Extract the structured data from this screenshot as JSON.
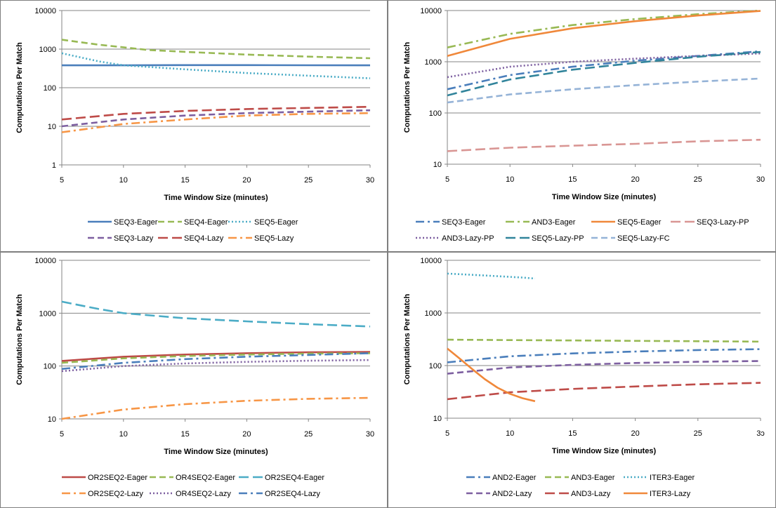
{
  "chart_data": [
    {
      "type": "line",
      "xlabel": "Time Window Size (minutes)",
      "ylabel": "Computations Per Match",
      "yscale": "log",
      "xlim": [
        5,
        30
      ],
      "ylim": [
        1,
        10000
      ],
      "xticks": [
        "5",
        "10",
        "15",
        "20",
        "25",
        "30"
      ],
      "yticks": [
        "1",
        "10",
        "100",
        "1000",
        "10000"
      ],
      "legend_rows": 2,
      "series": [
        {
          "name": "SEQ3-Eager",
          "color": "#4a7ebb",
          "dash": "solid",
          "x": [
            5,
            10,
            15,
            20,
            25,
            30
          ],
          "values": [
            380,
            380,
            385,
            385,
            382,
            380
          ]
        },
        {
          "name": "SEQ4-Eager",
          "color": "#98b954",
          "dash": "dash",
          "x": [
            5,
            8,
            12,
            15,
            20,
            25,
            30
          ],
          "values": [
            1750,
            1300,
            950,
            850,
            720,
            640,
            580
          ]
        },
        {
          "name": "SEQ5-Eager",
          "color": "#4bacc6",
          "dash": "dot",
          "x": [
            5,
            8,
            10,
            15,
            20,
            25,
            30
          ],
          "values": [
            780,
            480,
            380,
            300,
            240,
            205,
            175
          ]
        },
        {
          "name": "SEQ3-Lazy",
          "color": "#7d5fa0",
          "dash": "dash",
          "x": [
            5,
            10,
            15,
            20,
            25,
            30
          ],
          "values": [
            10,
            15,
            19,
            22,
            24,
            26
          ]
        },
        {
          "name": "SEQ4-Lazy",
          "color": "#be4b48",
          "dash": "longdash",
          "x": [
            5,
            10,
            15,
            20,
            25,
            30
          ],
          "values": [
            15,
            21,
            25,
            28,
            30,
            32
          ]
        },
        {
          "name": "SEQ5-Lazy",
          "color": "#f79646",
          "dash": "dashdot",
          "x": [
            5,
            10,
            15,
            20,
            25,
            30
          ],
          "values": [
            7,
            11.5,
            15,
            19,
            21,
            22
          ]
        }
      ]
    },
    {
      "type": "line",
      "xlabel": "Time Window Size (minutes)",
      "ylabel": "Computations Per Match",
      "yscale": "log",
      "xlim": [
        5,
        30
      ],
      "ylim": [
        10,
        10000
      ],
      "xticks": [
        "5",
        "10",
        "15",
        "20",
        "25",
        "30"
      ],
      "yticks": [
        "10",
        "100",
        "1000",
        "10000"
      ],
      "legend_rows": 2,
      "series": [
        {
          "name": "SEQ3-Eager",
          "color": "#4a7ebb",
          "dash": "dashdot",
          "x": [
            5,
            10,
            15,
            20,
            25,
            30
          ],
          "values": [
            290,
            550,
            800,
            1050,
            1300,
            1600
          ]
        },
        {
          "name": "AND3-Eager",
          "color": "#98b954",
          "dash": "dashdot",
          "x": [
            5,
            10,
            15,
            20,
            25,
            30
          ],
          "values": [
            1900,
            3500,
            5200,
            6800,
            8500,
            10000
          ]
        },
        {
          "name": "SEQ5-Eager",
          "color": "#f0883a",
          "dash": "solid",
          "x": [
            5,
            10,
            15,
            20,
            25,
            30
          ],
          "values": [
            1300,
            2800,
            4500,
            6200,
            8000,
            9800
          ]
        },
        {
          "name": "SEQ3-Lazy-PP",
          "color": "#d99694",
          "dash": "longdash",
          "x": [
            5,
            10,
            15,
            20,
            25,
            30
          ],
          "values": [
            18,
            21,
            23,
            25,
            28,
            30
          ]
        },
        {
          "name": "AND3-Lazy-PP",
          "color": "#7d5fa0",
          "dash": "dot",
          "x": [
            5,
            10,
            15,
            20,
            25,
            30
          ],
          "values": [
            500,
            800,
            1000,
            1150,
            1300,
            1450
          ]
        },
        {
          "name": "SEQ5-Lazy-PP",
          "color": "#31849b",
          "dash": "longdash",
          "x": [
            5,
            10,
            15,
            20,
            25,
            30
          ],
          "values": [
            220,
            450,
            700,
            950,
            1250,
            1550
          ]
        },
        {
          "name": "SEQ5-Lazy-FC",
          "color": "#95b3d7",
          "dash": "dash",
          "x": [
            5,
            10,
            15,
            20,
            25,
            30
          ],
          "values": [
            160,
            230,
            290,
            350,
            410,
            470
          ]
        }
      ]
    },
    {
      "type": "line",
      "xlabel": "Time Window Size (minutes)",
      "ylabel": "Computations Per Match",
      "yscale": "log",
      "xlim": [
        5,
        30
      ],
      "ylim": [
        10,
        10000
      ],
      "xticks": [
        "5",
        "10",
        "15",
        "20",
        "25",
        "30"
      ],
      "yticks": [
        "10",
        "100",
        "1000",
        "10000"
      ],
      "legend_rows": 2,
      "series": [
        {
          "name": "OR2SEQ2-Eager",
          "color": "#be4b48",
          "dash": "solid",
          "x": [
            5,
            10,
            15,
            20,
            25,
            30
          ],
          "values": [
            125,
            150,
            165,
            175,
            182,
            185
          ]
        },
        {
          "name": "OR4SEQ2-Eager",
          "color": "#98b954",
          "dash": "dash",
          "x": [
            5,
            10,
            15,
            20,
            25,
            30
          ],
          "values": [
            115,
            140,
            155,
            165,
            172,
            175
          ]
        },
        {
          "name": "OR2SEQ4-Eager",
          "color": "#4bacc6",
          "dash": "longdash",
          "x": [
            5,
            8,
            10,
            15,
            20,
            25,
            30
          ],
          "values": [
            1650,
            1200,
            1000,
            800,
            700,
            620,
            560
          ]
        },
        {
          "name": "OR2SEQ2-Lazy",
          "color": "#f79646",
          "dash": "dashdot",
          "x": [
            5,
            10,
            15,
            20,
            25,
            30
          ],
          "values": [
            10,
            15,
            19,
            22,
            24,
            25
          ]
        },
        {
          "name": "OR4SEQ2-Lazy",
          "color": "#7d5fa0",
          "dash": "dot",
          "x": [
            5,
            10,
            15,
            20,
            25,
            30
          ],
          "values": [
            80,
            100,
            112,
            120,
            126,
            130
          ]
        },
        {
          "name": "OR2SEQ4-Lazy",
          "color": "#4a7ebb",
          "dash": "dashdot",
          "x": [
            5,
            10,
            15,
            20,
            25,
            30
          ],
          "values": [
            88,
            115,
            135,
            150,
            162,
            175
          ]
        }
      ]
    },
    {
      "type": "line",
      "xlabel": "Time Window Size (minutes)",
      "ylabel": "Computations Per Match",
      "yscale": "log",
      "xlim": [
        5,
        30
      ],
      "ylim": [
        10,
        10000
      ],
      "xticks": [
        "5",
        "10",
        "15",
        "20",
        "25",
        "3ɔ"
      ],
      "yticks": [
        "10",
        "100",
        "1000",
        "10000"
      ],
      "legend_rows": 2,
      "series": [
        {
          "name": "AND2-Eager",
          "color": "#4a7ebb",
          "dash": "dashdot",
          "x": [
            5,
            10,
            15,
            20,
            25,
            30
          ],
          "values": [
            115,
            150,
            170,
            185,
            197,
            205
          ]
        },
        {
          "name": "AND3-Eager",
          "color": "#98b954",
          "dash": "dash",
          "x": [
            5,
            10,
            15,
            20,
            25,
            30
          ],
          "values": [
            310,
            305,
            300,
            295,
            290,
            285
          ]
        },
        {
          "name": "ITER3-Eager",
          "color": "#4bacc6",
          "dash": "dot",
          "x": [
            5,
            7,
            9,
            11,
            12
          ],
          "values": [
            5600,
            5300,
            5000,
            4700,
            4500
          ]
        },
        {
          "name": "AND2-Lazy",
          "color": "#7d5fa0",
          "dash": "dash",
          "x": [
            5,
            10,
            15,
            20,
            25,
            30
          ],
          "values": [
            70,
            92,
            103,
            112,
            118,
            122
          ]
        },
        {
          "name": "AND3-Lazy",
          "color": "#be4b48",
          "dash": "longdash",
          "x": [
            5,
            10,
            15,
            20,
            25,
            30
          ],
          "values": [
            23,
            31,
            36,
            40,
            44,
            47
          ]
        },
        {
          "name": "ITER3-Lazy",
          "color": "#f0883a",
          "dash": "solid",
          "x": [
            5,
            6,
            7,
            8,
            9,
            10,
            11,
            12
          ],
          "values": [
            210,
            135,
            85,
            55,
            38,
            29,
            24,
            21
          ]
        }
      ]
    }
  ]
}
